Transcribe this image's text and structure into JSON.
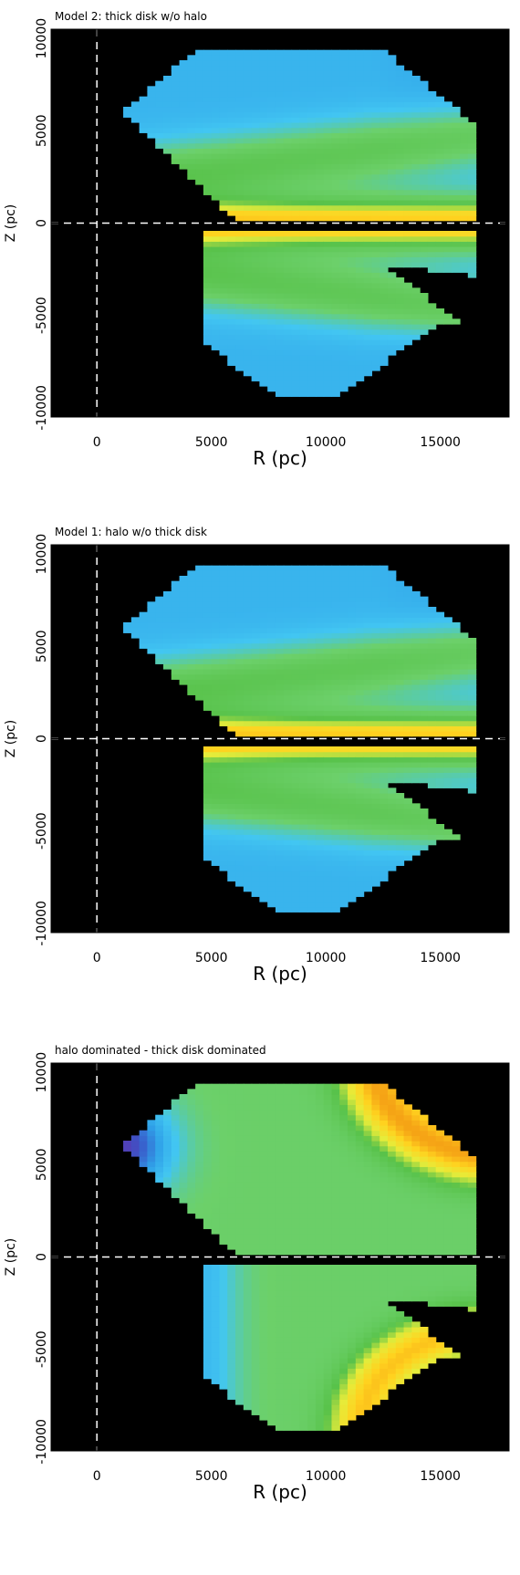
{
  "chart_data": [
    {
      "type": "heatmap",
      "title": "Model 2: thick disk w/o halo",
      "xlabel": "R (pc)",
      "ylabel": "Z (pc)",
      "xlim": [
        -2000,
        18000
      ],
      "ylim": [
        -10500,
        10500
      ],
      "xticks": [
        0,
        5000,
        10000,
        15000
      ],
      "yticks": [
        -10000,
        -5000,
        0,
        5000,
        10000
      ],
      "x_tick_labels": [
        "0",
        "5000",
        "10000",
        "15000"
      ],
      "y_tick_labels": [
        "-10000",
        "-5000",
        "0",
        "5000",
        "10000"
      ],
      "reference_lines": {
        "x": 0,
        "y": 0
      },
      "background_color": "#000000",
      "colormap": [
        "#6a2aa8",
        "#3a56c8",
        "#2fa0e8",
        "#42c6f2",
        "#6cd06a",
        "#58c24a",
        "#e6ec3a",
        "#ffd21f",
        "#f08a10",
        "#d41f10"
      ],
      "pattern": "dense"
    },
    {
      "type": "heatmap",
      "title": "Model 1: halo w/o thick disk",
      "xlabel": "R (pc)",
      "ylabel": "Z (pc)",
      "xlim": [
        -2000,
        18000
      ],
      "ylim": [
        -10500,
        10500
      ],
      "xticks": [
        0,
        5000,
        10000,
        15000
      ],
      "yticks": [
        -10000,
        -5000,
        0,
        5000,
        10000
      ],
      "x_tick_labels": [
        "0",
        "5000",
        "10000",
        "15000"
      ],
      "y_tick_labels": [
        "-10000",
        "-5000",
        "0",
        "5000",
        "10000"
      ],
      "reference_lines": {
        "x": 0,
        "y": 0
      },
      "background_color": "#000000",
      "colormap": [
        "#6a2aa8",
        "#3a56c8",
        "#2fa0e8",
        "#42c6f2",
        "#6cd06a",
        "#58c24a",
        "#e6ec3a",
        "#ffd21f",
        "#f08a10",
        "#d41f10"
      ],
      "pattern": "dense"
    },
    {
      "type": "heatmap",
      "title": "halo dominated - thick disk dominated",
      "xlabel": "R (pc)",
      "ylabel": "Z (pc)",
      "xlim": [
        -2000,
        18000
      ],
      "ylim": [
        -10500,
        10500
      ],
      "xticks": [
        0,
        5000,
        10000,
        15000
      ],
      "yticks": [
        -10000,
        -5000,
        0,
        5000,
        10000
      ],
      "x_tick_labels": [
        "0",
        "5000",
        "10000",
        "15000"
      ],
      "y_tick_labels": [
        "-10000",
        "-5000",
        "0",
        "5000",
        "10000"
      ],
      "reference_lines": {
        "x": 0,
        "y": 0
      },
      "background_color": "#000000",
      "colormap": [
        "#6a2aa8",
        "#3a56c8",
        "#2fa0e8",
        "#42c6f2",
        "#6cd06a",
        "#58c24a",
        "#e6ec3a",
        "#ffd21f",
        "#f08a10",
        "#d41f10"
      ],
      "pattern": "difference"
    }
  ]
}
